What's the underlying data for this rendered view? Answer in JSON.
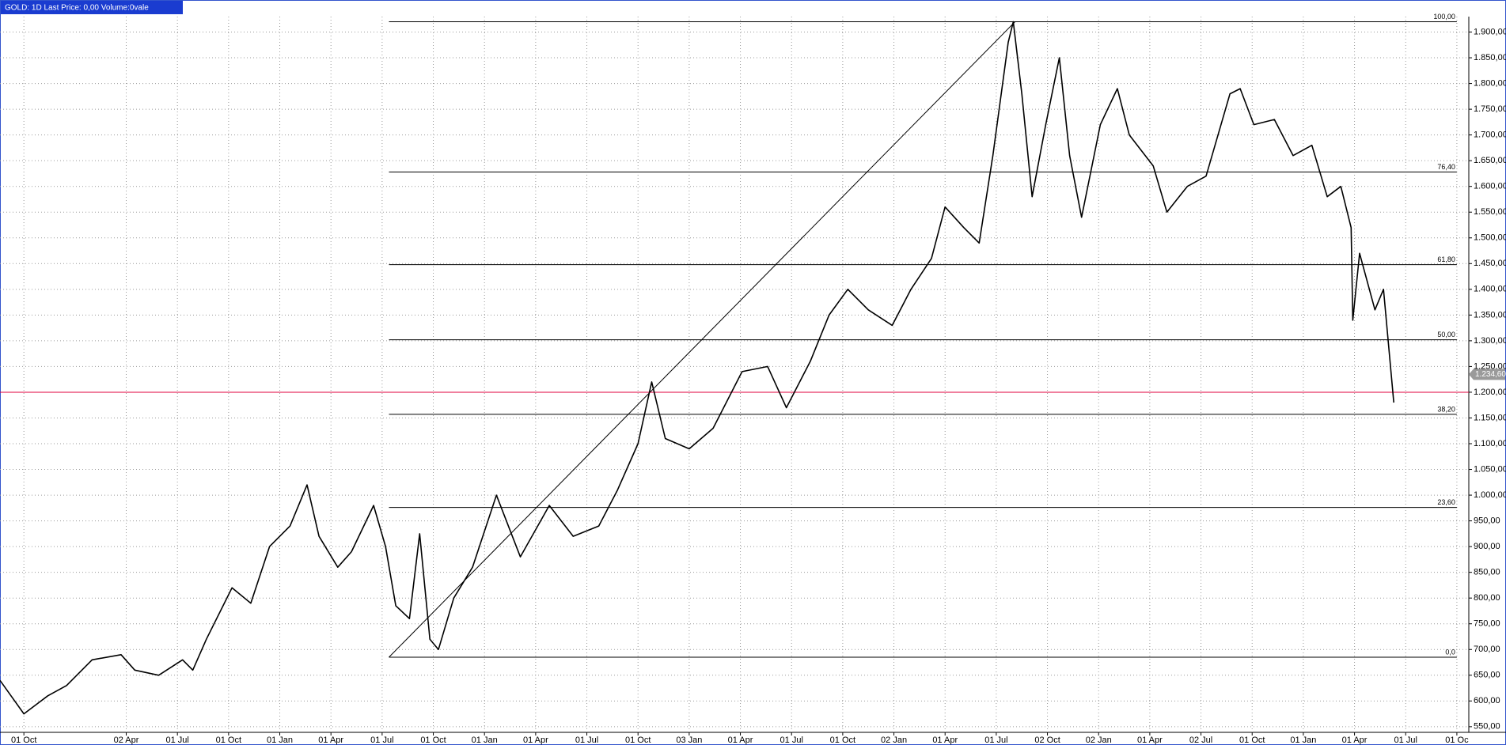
{
  "chart_data": {
    "type": "line",
    "title": "GOLD: 1D Last Price: 0,00 Volume:0vale",
    "series": [
      {
        "name": "GOLD",
        "color": "#000000",
        "x": [
          -1.4,
          0,
          1.4,
          2.5,
          4,
          5.7,
          6.5,
          7.9,
          9.3,
          9.9,
          10.7,
          12.2,
          13.3,
          14.4,
          15.6,
          16.6,
          17.3,
          18.4,
          19.2,
          20.5,
          21.2,
          21.8,
          22.6,
          23.2,
          23.8,
          24.3,
          25.2,
          26.3,
          27.7,
          29.1,
          30.8,
          32.2,
          33.7,
          34.8,
          36.0,
          36.8,
          37.6,
          39.0,
          40.4,
          42.1,
          43.6,
          44.7,
          46.1,
          47.2,
          48.3,
          49.5,
          50.9,
          52.0,
          53.2,
          54.0,
          55.1,
          56.0,
          56.8,
          57.7,
          58.0,
          58.5,
          59.1,
          59.9,
          60.7,
          61.3,
          62.0,
          63.1,
          64.1,
          64.8,
          66.2,
          67.0,
          68.2,
          69.3,
          70.7,
          71.3,
          72.1,
          73.3,
          74.4,
          75.5,
          76.4,
          77.2,
          77.8,
          77.9,
          78.3,
          79.2,
          79.7,
          80.3
        ],
        "values": [
          640,
          575,
          610,
          630,
          680,
          690,
          660,
          650,
          680,
          660,
          720,
          820,
          790,
          900,
          940,
          1020,
          920,
          860,
          890,
          980,
          900,
          785,
          760,
          925,
          720,
          700,
          800,
          860,
          1000,
          880,
          980,
          920,
          940,
          1010,
          1100,
          1220,
          1110,
          1090,
          1130,
          1240,
          1250,
          1170,
          1260,
          1350,
          1400,
          1360,
          1330,
          1400,
          1460,
          1560,
          1520,
          1490,
          1660,
          1880,
          1920,
          1780,
          1580,
          1720,
          1850,
          1660,
          1540,
          1720,
          1790,
          1700,
          1640,
          1550,
          1600,
          1620,
          1780,
          1790,
          1720,
          1730,
          1660,
          1680,
          1580,
          1600,
          1520,
          1340,
          1470,
          1360,
          1400,
          1180
        ]
      }
    ],
    "xlim": [
      -1.4,
      84.7
    ],
    "ylim": [
      539,
      1930
    ],
    "xticks": [
      {
        "value": 0,
        "label": "01 Oct"
      },
      {
        "value": 6,
        "label": "02 Apr"
      },
      {
        "value": 9,
        "label": "01 Jul"
      },
      {
        "value": 12,
        "label": "01 Oct"
      },
      {
        "value": 15,
        "label": "01 Jan"
      },
      {
        "value": 18,
        "label": "01 Apr"
      },
      {
        "value": 21,
        "label": "01 Jul"
      },
      {
        "value": 24,
        "label": "01 Oct"
      },
      {
        "value": 27,
        "label": "01 Jan"
      },
      {
        "value": 30,
        "label": "01 Apr"
      },
      {
        "value": 33,
        "label": "01 Jul"
      },
      {
        "value": 36,
        "label": "01 Oct"
      },
      {
        "value": 39,
        "label": "03 Jan"
      },
      {
        "value": 42,
        "label": "01 Apr"
      },
      {
        "value": 45,
        "label": "01 Jul"
      },
      {
        "value": 48,
        "label": "01 Oct"
      },
      {
        "value": 51,
        "label": "02 Jan"
      },
      {
        "value": 54,
        "label": "01 Apr"
      },
      {
        "value": 57,
        "label": "01 Jul"
      },
      {
        "value": 60,
        "label": "02 Oct"
      },
      {
        "value": 63,
        "label": "02 Jan"
      },
      {
        "value": 66,
        "label": "01 Apr"
      },
      {
        "value": 69,
        "label": "02 Jul"
      },
      {
        "value": 72,
        "label": "01 Oct"
      },
      {
        "value": 75,
        "label": "01 Jan"
      },
      {
        "value": 78,
        "label": "01 Apr"
      },
      {
        "value": 81,
        "label": "01 Jul"
      },
      {
        "value": 84,
        "label": "01 Oc"
      }
    ],
    "yticks": [
      {
        "value": 550,
        "label": "550,00"
      },
      {
        "value": 600,
        "label": "600,00"
      },
      {
        "value": 650,
        "label": "650,00"
      },
      {
        "value": 700,
        "label": "700,00"
      },
      {
        "value": 750,
        "label": "750,00"
      },
      {
        "value": 800,
        "label": "800,00"
      },
      {
        "value": 850,
        "label": "850,00"
      },
      {
        "value": 900,
        "label": "900,00"
      },
      {
        "value": 950,
        "label": "950,00"
      },
      {
        "value": 1000,
        "label": "1.000,00"
      },
      {
        "value": 1050,
        "label": "1.050,00"
      },
      {
        "value": 1100,
        "label": "1.100,00"
      },
      {
        "value": 1150,
        "label": "1.150,00"
      },
      {
        "value": 1200,
        "label": "1.200,00"
      },
      {
        "value": 1250,
        "label": "1.250,00"
      },
      {
        "value": 1300,
        "label": "1.300,00"
      },
      {
        "value": 1350,
        "label": "1.350,00"
      },
      {
        "value": 1400,
        "label": "1.400,00"
      },
      {
        "value": 1450,
        "label": "1.450,00"
      },
      {
        "value": 1500,
        "label": "1.500,00"
      },
      {
        "value": 1550,
        "label": "1.550,00"
      },
      {
        "value": 1600,
        "label": "1.600,00"
      },
      {
        "value": 1650,
        "label": "1.650,00"
      },
      {
        "value": 1700,
        "label": "1.700,00"
      },
      {
        "value": 1750,
        "label": "1.750,00"
      },
      {
        "value": 1800,
        "label": "1.800,00"
      },
      {
        "value": 1850,
        "label": "1.850,00"
      },
      {
        "value": 1900,
        "label": "1.900,00"
      }
    ],
    "grid": true,
    "fibonacci": {
      "start": 21.4,
      "end": 58.1,
      "right": 84.0,
      "levels": [
        {
          "value": 685,
          "label": "0,0"
        },
        {
          "value": 976,
          "label": "23,60"
        },
        {
          "value": 1157,
          "label": "38,20"
        },
        {
          "value": 1302,
          "label": "50,00"
        },
        {
          "value": 1448,
          "label": "61,80"
        },
        {
          "value": 1628,
          "label": "76,40"
        },
        {
          "value": 1920,
          "label": "100,00"
        }
      ]
    },
    "price_line": {
      "value": 1200,
      "color": "#e0003c"
    },
    "price_tag": {
      "value": 1234.6,
      "label": "1.234,60"
    }
  }
}
